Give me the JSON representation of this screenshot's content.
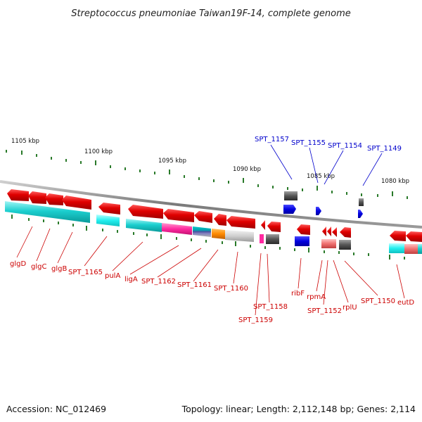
{
  "title": "Streptococcus pneumoniae Taiwan19F-14, complete genome",
  "footer": {
    "accession": "Accession: NC_012469",
    "summary": "Topology: linear; Length: 2,112,148 bp; Genes: 2,114"
  },
  "scale_labels": [
    "1105 kbp",
    "1100 kbp",
    "1095 kbp",
    "1090 kbp",
    "1085 kbp",
    "1080 kbp"
  ],
  "gene_labels_bottom": [
    "glgD",
    "glgC",
    "glgB",
    "SPT_1165",
    "pulA",
    "ligA",
    "SPT_1162",
    "SPT_1161",
    "SPT_1160",
    "SPT_1158",
    "SPT_1159",
    "ribF",
    "rpmA",
    "SPT_1152",
    "rplU",
    "SPT_1150",
    "eutD"
  ],
  "gene_labels_top": [
    "SPT_1157",
    "SPT_1155",
    "SPT_1154",
    "SPT_1149"
  ],
  "colors": {
    "gene_arrow": "#dd0000",
    "forward_gene": "#0000ee",
    "cyan_feature": "#00c8c8",
    "pink_feature": "#ff33aa",
    "orange_feature": "#ff8800",
    "gray_feature": "#555555",
    "light_red_feature": "#f07070",
    "backbone": "#888888",
    "tick": "#2a7a2a"
  }
}
